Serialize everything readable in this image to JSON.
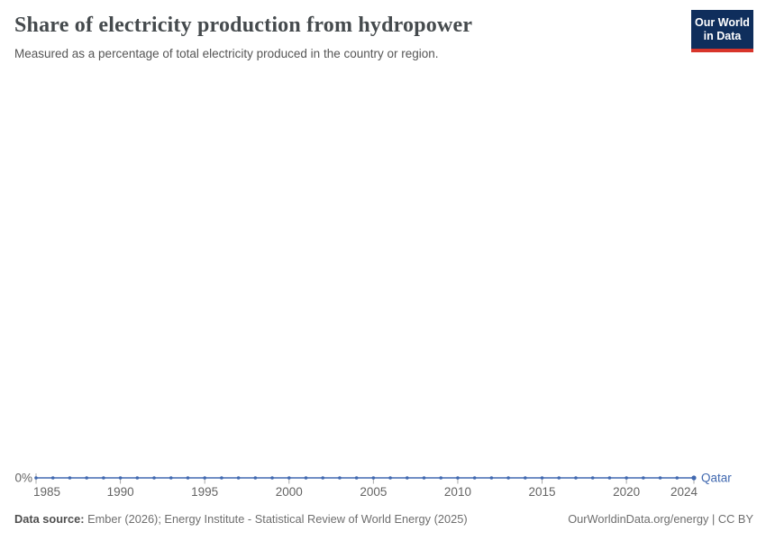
{
  "header": {
    "title": "Share of electricity production from hydropower",
    "subtitle": "Measured as a percentage of total electricity produced in the country or region.",
    "logo": {
      "line1": "Our World",
      "line2": "in Data"
    }
  },
  "chart_data": {
    "type": "line",
    "title": "Share of electricity production from hydropower",
    "entity_label": "Qatar",
    "xlim": [
      1985,
      2024
    ],
    "ylim": [
      0,
      0
    ],
    "grid": false,
    "legend_position": "end-of-line",
    "x_ticks": [
      1985,
      1990,
      1995,
      2000,
      2005,
      2010,
      2015,
      2020,
      2024
    ],
    "y_ticks": [
      "0%"
    ],
    "series": [
      {
        "name": "Qatar",
        "color": "#4169b0",
        "x": [
          1985,
          1986,
          1987,
          1988,
          1989,
          1990,
          1991,
          1992,
          1993,
          1994,
          1995,
          1996,
          1997,
          1998,
          1999,
          2000,
          2001,
          2002,
          2003,
          2004,
          2005,
          2006,
          2007,
          2008,
          2009,
          2010,
          2011,
          2012,
          2013,
          2014,
          2015,
          2016,
          2017,
          2018,
          2019,
          2020,
          2021,
          2022,
          2023,
          2024
        ],
        "values": [
          0,
          0,
          0,
          0,
          0,
          0,
          0,
          0,
          0,
          0,
          0,
          0,
          0,
          0,
          0,
          0,
          0,
          0,
          0,
          0,
          0,
          0,
          0,
          0,
          0,
          0,
          0,
          0,
          0,
          0,
          0,
          0,
          0,
          0,
          0,
          0,
          0,
          0,
          0,
          0
        ]
      }
    ]
  },
  "footer": {
    "source_label": "Data source:",
    "source_text": " Ember (2026); Energy Institute - Statistical Review of World Energy (2025)",
    "right_text": "OurWorldinData.org/energy | CC BY"
  },
  "colors": {
    "accent": "#4169b0",
    "tick": "#a9a9a9",
    "logo_navy": "#0f2e5c",
    "logo_red": "#d8352b"
  }
}
